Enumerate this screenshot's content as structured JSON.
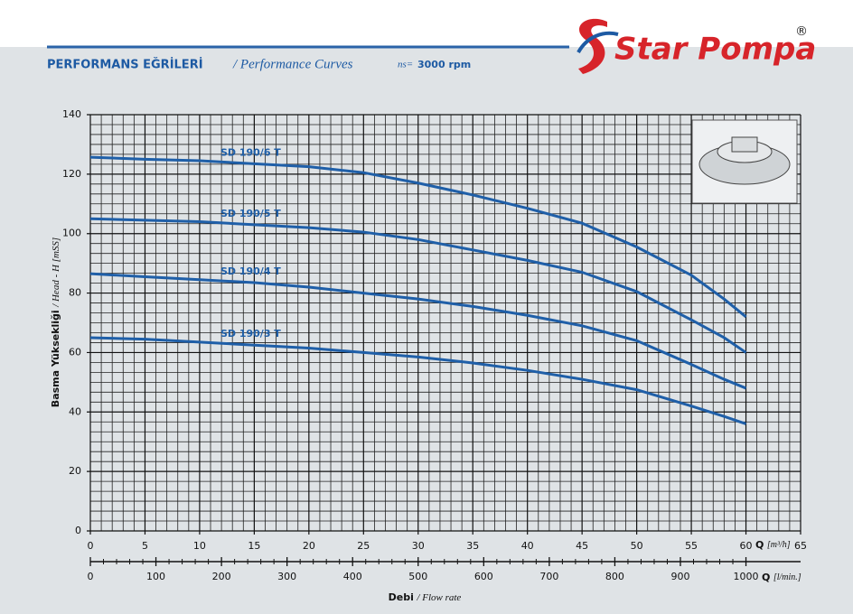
{
  "header": {
    "title_tr": "PERFORMANS EĞRİLERİ",
    "title_en": "/ Performance Curves",
    "ns_label": "ns=",
    "ns_value": "3000 rpm",
    "brand": "Star Pompa",
    "registered": "®"
  },
  "chart_data": {
    "type": "line",
    "x": [
      0,
      5,
      10,
      15,
      20,
      25,
      30,
      35,
      40,
      45,
      50,
      55,
      58,
      60
    ],
    "series": [
      {
        "name": "SD 190/6 T",
        "color": "#1f5fa8",
        "values": [
          125.7,
          125,
          124.5,
          123.5,
          122.5,
          120.5,
          117,
          113,
          108.5,
          103.5,
          95.5,
          86,
          78,
          72
        ]
      },
      {
        "name": "SD 190/5 T",
        "color": "#1f5fa8",
        "values": [
          105,
          104.5,
          104,
          103,
          102,
          100.5,
          98,
          94.5,
          91,
          87,
          80.5,
          71,
          65,
          60
        ]
      },
      {
        "name": "SD 190/4 T",
        "color": "#1f5fa8",
        "values": [
          86.5,
          85.5,
          84.5,
          83.5,
          82,
          80,
          78,
          75.5,
          72.5,
          69,
          64,
          56,
          51,
          48
        ]
      },
      {
        "name": "SD 190/3 T",
        "color": "#1f5fa8",
        "values": [
          65,
          64.5,
          63.5,
          62.5,
          61.5,
          60,
          58.5,
          56.5,
          54,
          51,
          47.5,
          42,
          38.5,
          36
        ]
      }
    ],
    "xlim": [
      0,
      65
    ],
    "xticks": [
      0,
      5,
      10,
      15,
      20,
      25,
      30,
      35,
      40,
      45,
      50,
      55,
      60,
      65
    ],
    "ylim": [
      0,
      140
    ],
    "yticks": [
      0,
      20,
      40,
      60,
      80,
      100,
      120,
      140
    ],
    "x2lim": [
      0,
      1083.33
    ],
    "x2ticks": [
      0,
      100,
      200,
      300,
      400,
      500,
      600,
      700,
      800,
      900,
      1000
    ],
    "grid": true,
    "ylabel_tr": "Basma Yüksekliği",
    "ylabel_en": "/ Head - H [mSS]",
    "xlabel_tr": "Debi",
    "xlabel_en": "/ Flow rate",
    "x_unit": "Q",
    "x_unit_detail": "[m³/h]",
    "x2_unit": "Q",
    "x2_unit_detail": "[l/min.]"
  }
}
